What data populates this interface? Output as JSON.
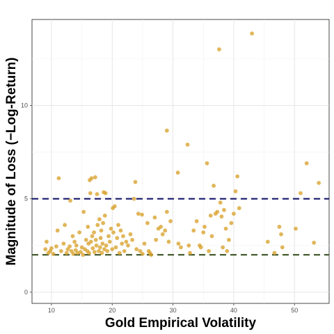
{
  "chart_data": {
    "type": "scatter",
    "title": "",
    "xlabel": "Gold Empirical Volatility",
    "ylabel": "Magnitude of Loss (−Log-Return)",
    "xlim": [
      6.8,
      55.7
    ],
    "ylim": [
      -0.6,
      14.6
    ],
    "x_ticks": [
      10,
      20,
      30,
      40,
      50
    ],
    "y_ticks": [
      0,
      5,
      10
    ],
    "grid": true,
    "legend": "none",
    "point_color": "#D9A22B",
    "reference_lines": [
      {
        "y": 5,
        "color": "#15166B",
        "style": "dashed"
      },
      {
        "y": 2,
        "color": "#3B5323",
        "style": "dashed"
      }
    ],
    "points": [
      [
        9.0,
        2.3
      ],
      [
        9.2,
        2.7
      ],
      [
        9.5,
        2.1
      ],
      [
        9.8,
        2.2
      ],
      [
        10.0,
        2.35
      ],
      [
        10.3,
        2.05
      ],
      [
        10.8,
        2.45
      ],
      [
        11.0,
        3.3
      ],
      [
        11.2,
        6.1
      ],
      [
        11.6,
        2.2
      ],
      [
        12.0,
        2.6
      ],
      [
        12.2,
        3.6
      ],
      [
        12.5,
        2.1
      ],
      [
        12.7,
        2.3
      ],
      [
        13.0,
        2.45
      ],
      [
        13.1,
        4.9
      ],
      [
        13.3,
        2.2
      ],
      [
        13.5,
        3.0
      ],
      [
        13.6,
        2.05
      ],
      [
        13.8,
        2.7
      ],
      [
        14.0,
        2.25
      ],
      [
        14.1,
        2.5
      ],
      [
        14.3,
        2.1
      ],
      [
        14.6,
        3.2
      ],
      [
        14.8,
        2.15
      ],
      [
        15.0,
        2.4
      ],
      [
        15.2,
        2.0
      ],
      [
        15.3,
        4.3
      ],
      [
        15.5,
        2.3
      ],
      [
        15.7,
        2.8
      ],
      [
        15.9,
        2.2
      ],
      [
        16.0,
        3.5
      ],
      [
        16.1,
        2.6
      ],
      [
        16.2,
        2.1
      ],
      [
        16.3,
        6.0
      ],
      [
        16.4,
        5.3
      ],
      [
        16.5,
        2.7
      ],
      [
        16.6,
        6.1
      ],
      [
        16.7,
        3.0
      ],
      [
        16.8,
        2.35
      ],
      [
        17.0,
        3.2
      ],
      [
        17.1,
        2.15
      ],
      [
        17.2,
        6.15
      ],
      [
        17.3,
        2.8
      ],
      [
        17.4,
        2.5
      ],
      [
        17.5,
        5.25
      ],
      [
        17.6,
        3.6
      ],
      [
        17.8,
        2.2
      ],
      [
        17.9,
        3.9
      ],
      [
        18.0,
        2.4
      ],
      [
        18.1,
        2.9
      ],
      [
        18.2,
        3.3
      ],
      [
        18.3,
        2.1
      ],
      [
        18.4,
        2.6
      ],
      [
        18.5,
        3.7
      ],
      [
        18.6,
        5.35
      ],
      [
        18.7,
        2.3
      ],
      [
        18.8,
        4.1
      ],
      [
        18.9,
        5.3
      ],
      [
        19.0,
        2.5
      ],
      [
        19.2,
        2.2
      ],
      [
        19.4,
        3.0
      ],
      [
        19.6,
        2.7
      ],
      [
        19.8,
        3.4
      ],
      [
        20.0,
        2.3
      ],
      [
        20.1,
        4.5
      ],
      [
        20.2,
        3.2
      ],
      [
        20.4,
        4.6
      ],
      [
        20.6,
        2.4
      ],
      [
        20.8,
        2.9
      ],
      [
        21.0,
        3.6
      ],
      [
        21.2,
        2.1
      ],
      [
        21.4,
        3.3
      ],
      [
        21.6,
        2.6
      ],
      [
        21.8,
        3.0
      ],
      [
        22.0,
        2.2
      ],
      [
        22.3,
        2.7
      ],
      [
        22.6,
        2.5
      ],
      [
        23.0,
        3.1
      ],
      [
        23.3,
        2.8
      ],
      [
        23.6,
        5.0
      ],
      [
        23.8,
        5.9
      ],
      [
        24.0,
        2.3
      ],
      [
        24.3,
        4.2
      ],
      [
        24.6,
        2.2
      ],
      [
        24.9,
        4.15
      ],
      [
        25.0,
        2.05
      ],
      [
        25.3,
        2.6
      ],
      [
        25.8,
        3.7
      ],
      [
        26.0,
        2.2
      ],
      [
        26.2,
        2.1
      ],
      [
        26.4,
        2.0
      ],
      [
        27.0,
        4.0
      ],
      [
        27.2,
        2.8
      ],
      [
        27.6,
        3.4
      ],
      [
        28.0,
        3.5
      ],
      [
        28.3,
        3.1
      ],
      [
        28.7,
        3.3
      ],
      [
        29.0,
        4.3
      ],
      [
        29.0,
        8.65
      ],
      [
        29.3,
        2.7
      ],
      [
        29.6,
        3.8
      ],
      [
        30.8,
        6.4
      ],
      [
        30.9,
        2.6
      ],
      [
        31.3,
        2.4
      ],
      [
        32.4,
        7.9
      ],
      [
        32.6,
        2.5
      ],
      [
        32.8,
        2.1
      ],
      [
        33.4,
        3.3
      ],
      [
        33.9,
        3.8
      ],
      [
        34.4,
        2.5
      ],
      [
        34.6,
        2.4
      ],
      [
        35.0,
        3.2
      ],
      [
        35.2,
        3.5
      ],
      [
        35.6,
        6.9
      ],
      [
        35.9,
        2.2
      ],
      [
        36.2,
        4.1
      ],
      [
        36.4,
        3.0
      ],
      [
        36.7,
        5.7
      ],
      [
        37.0,
        4.2
      ],
      [
        37.3,
        4.3
      ],
      [
        37.6,
        13.0
      ],
      [
        37.8,
        4.8
      ],
      [
        38.0,
        4.05
      ],
      [
        38.2,
        2.4
      ],
      [
        38.4,
        4.4
      ],
      [
        38.7,
        3.4
      ],
      [
        38.9,
        2.2
      ],
      [
        39.2,
        2.8
      ],
      [
        39.6,
        3.7
      ],
      [
        40.0,
        4.2
      ],
      [
        40.3,
        5.4
      ],
      [
        40.6,
        6.2
      ],
      [
        40.9,
        4.5
      ],
      [
        43.0,
        13.85
      ],
      [
        45.6,
        2.7
      ],
      [
        46.7,
        2.1
      ],
      [
        47.5,
        3.5
      ],
      [
        47.8,
        3.1
      ],
      [
        48.0,
        2.4
      ],
      [
        50.2,
        3.4
      ],
      [
        51.0,
        5.3
      ],
      [
        52.0,
        6.9
      ],
      [
        53.2,
        2.65
      ],
      [
        54.0,
        5.85
      ]
    ]
  }
}
